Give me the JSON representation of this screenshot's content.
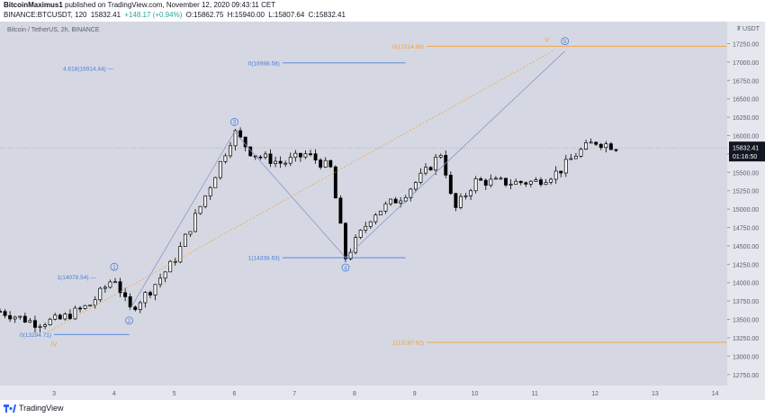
{
  "header": {
    "author": "BitcoinMaximus1",
    "published": "published on TradingView.com, November 12, 2020 09:43:11 CET",
    "symbol": "BINANCE:BTCUSDT, 120",
    "last": "15832.41",
    "change": "+148.17 (+0.94%)",
    "open": "O:15862.75",
    "high": "H:15940.00",
    "low": "L:15807.64",
    "close": "C:15832.41"
  },
  "footer": {
    "logo_text": "TradingView"
  },
  "colors": {
    "plot_bg": "#d5d8e3",
    "axis_bg": "#e5e7ee",
    "blue": "#4a7ed8",
    "orange": "#f0a033",
    "text": "#5d606b",
    "price_label_bg": "#131722"
  },
  "chart_data": {
    "type": "candlestick",
    "title": "Bitcoin / TetherUS, 2h, BINANCE",
    "currency_label": "₮ USDT",
    "x_axis": {
      "tick_labels": [
        "3",
        "4",
        "5",
        "6",
        "7",
        "8",
        "9",
        "10",
        "11",
        "12",
        "13",
        "14"
      ],
      "range": [
        2.1,
        14.2
      ]
    },
    "y_axis": {
      "range": [
        12600,
        17550
      ],
      "tick_labels": [
        "17250.00",
        "17000.00",
        "16750.00",
        "16500.00",
        "16250.00",
        "16000.00",
        "15750.00",
        "15500.00",
        "15250.00",
        "15000.00",
        "14750.00",
        "14500.00",
        "14250.00",
        "14000.00",
        "13750.00",
        "13500.00",
        "13250.00",
        "13000.00",
        "12750.00"
      ]
    },
    "last_price_label": "15832.41",
    "countdown_label": "01:16:50",
    "keypoints": [
      [
        2.1,
        13610
      ],
      [
        2.7,
        13450
      ],
      [
        3.1,
        13500
      ],
      [
        3.6,
        13700
      ],
      [
        4.0,
        14080
      ],
      [
        4.25,
        13620
      ],
      [
        4.6,
        13900
      ],
      [
        5.0,
        14300
      ],
      [
        5.5,
        15150
      ],
      [
        6.0,
        16050
      ],
      [
        6.3,
        15750
      ],
      [
        6.8,
        15620
      ],
      [
        7.2,
        15750
      ],
      [
        7.6,
        15550
      ],
      [
        7.85,
        14340
      ],
      [
        8.3,
        14930
      ],
      [
        8.8,
        15180
      ],
      [
        9.2,
        15520
      ],
      [
        9.45,
        15780
      ],
      [
        9.65,
        14970
      ],
      [
        10.0,
        15380
      ],
      [
        10.6,
        15360
      ],
      [
        11.0,
        15370
      ],
      [
        11.4,
        15510
      ],
      [
        11.7,
        15760
      ],
      [
        12.0,
        15920
      ],
      [
        12.35,
        15850
      ]
    ],
    "levels": [
      {
        "label": "0(17214.86)",
        "value": 17214.86,
        "color": "orange"
      },
      {
        "label": "0(16988.58)",
        "value": 16988.58,
        "color": "blue"
      },
      {
        "label": "4.618(16914.44) —",
        "value": 16914.44,
        "color": "blue"
      },
      {
        "label": "1(14338.63)",
        "value": 14338.63,
        "color": "blue"
      },
      {
        "label": "1(14078.54) —",
        "value": 14078.54,
        "color": "blue"
      },
      {
        "label": "0(13294.71)",
        "value": 13294.71,
        "color": "blue"
      },
      {
        "label": "1(13187.62)",
        "value": 13187.62,
        "color": "orange"
      }
    ],
    "wave_labels": [
      {
        "label": "1",
        "x": 4.0,
        "y": 14080
      },
      {
        "label": "2",
        "x": 4.25,
        "y": 13620
      },
      {
        "label": "3",
        "x": 6.0,
        "y": 16050
      },
      {
        "label": "4",
        "x": 7.85,
        "y": 14340
      },
      {
        "label": "5",
        "x": 11.5,
        "y": 17150
      },
      {
        "label": "IV",
        "x": 3.0,
        "y": 13295
      },
      {
        "label": "V",
        "x": 11.2,
        "y": 17215
      }
    ],
    "wave_path_blue": [
      [
        4.25,
        13620
      ],
      [
        6.0,
        16050
      ],
      [
        7.85,
        14340
      ],
      [
        11.5,
        17150
      ]
    ],
    "trend_line_orange": [
      [
        2.9,
        13330
      ],
      [
        11.3,
        17150
      ]
    ]
  }
}
